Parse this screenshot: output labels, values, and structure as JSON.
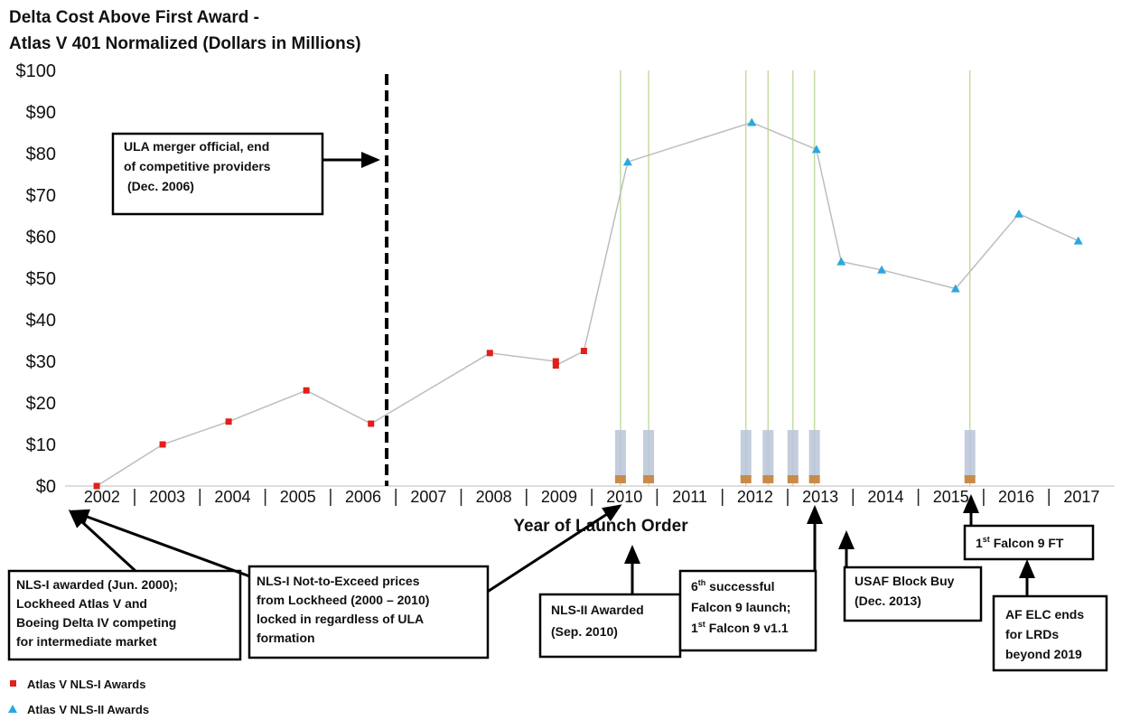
{
  "chart_data": {
    "type": "line",
    "title": [
      "Delta Cost Above First Award -",
      "Atlas V 401 Normalized (Dollars in Millions)"
    ],
    "x_label": "Year of Launch Order",
    "xlim": [
      2002,
      2018
    ],
    "xticks": [
      2002,
      2003,
      2004,
      2005,
      2006,
      2007,
      2008,
      2009,
      2010,
      2011,
      2012,
      2013,
      2014,
      2015,
      2016,
      2017
    ],
    "ylim": [
      0,
      100
    ],
    "yticks": [
      {
        "value": 0,
        "label": "$0"
      },
      {
        "value": 10,
        "label": "$10"
      },
      {
        "value": 20,
        "label": "$20"
      },
      {
        "value": 30,
        "label": "$30"
      },
      {
        "value": 40,
        "label": "$40"
      },
      {
        "value": 50,
        "label": "$50"
      },
      {
        "value": 60,
        "label": "$60"
      },
      {
        "value": 70,
        "label": "$70"
      },
      {
        "value": 80,
        "label": "$80"
      },
      {
        "value": 90,
        "label": "$90"
      },
      {
        "value": 100,
        "label": "$100"
      }
    ],
    "grid": false,
    "line_color": "#bdbdbd",
    "series": [
      {
        "name": "Atlas V NLS-I Awards",
        "color": "#e0201c",
        "marker": "square",
        "x": [
          2002.42,
          2003.43,
          2004.44,
          2005.63,
          2006.62,
          2008.44,
          2009.45,
          2009.45,
          2009.88
        ],
        "values": [
          0,
          10,
          15.5,
          23,
          15,
          32,
          30,
          29,
          32.5
        ]
      },
      {
        "name": "Atlas V NLS-II Awards",
        "color": "#29a8e0",
        "marker": "triangle",
        "x": [
          2010.55,
          2012.45,
          2013.44,
          2013.82,
          2014.44,
          2015.57,
          2016.54,
          2017.45
        ],
        "values": [
          78,
          87.5,
          81,
          54,
          52,
          47.5,
          65.5,
          59
        ]
      }
    ],
    "merger_x": 2006.86,
    "launch_x": [
      2010.44,
      2010.87,
      2012.36,
      2012.7,
      2013.08,
      2013.41,
      2015.79
    ],
    "launch_color": "#c5dca0",
    "annotations": [
      {
        "lines": [
          "ULA merger official, end",
          "of competitive providers",
          "(Dec. 2006)"
        ]
      },
      {
        "lines": [
          "NLS-I awarded (Jun. 2000);",
          "Lockheed Atlas V and",
          "Boeing Delta IV competing",
          "for intermediate market"
        ]
      },
      {
        "lines": [
          "NLS-I Not-to-Exceed prices",
          "from Lockheed (2000 – 2010)",
          "locked in regardless of ULA",
          "formation"
        ]
      },
      {
        "lines": [
          "NLS-II Awarded",
          "(Sep. 2010)"
        ]
      },
      {
        "lines": [
          [
            "6",
            "th",
            " successful"
          ],
          [
            "Falcon 9 launch;"
          ],
          [
            "1",
            "st",
            " Falcon 9 v1.1"
          ]
        ]
      },
      {
        "lines": [
          "USAF Block Buy",
          "(Dec. 2013)"
        ]
      },
      {
        "lines": [
          [
            "1",
            "st",
            " Falcon 9 FT"
          ]
        ]
      },
      {
        "lines": [
          "AF ELC ends",
          "for LRDs",
          "beyond 2019"
        ]
      }
    ]
  }
}
